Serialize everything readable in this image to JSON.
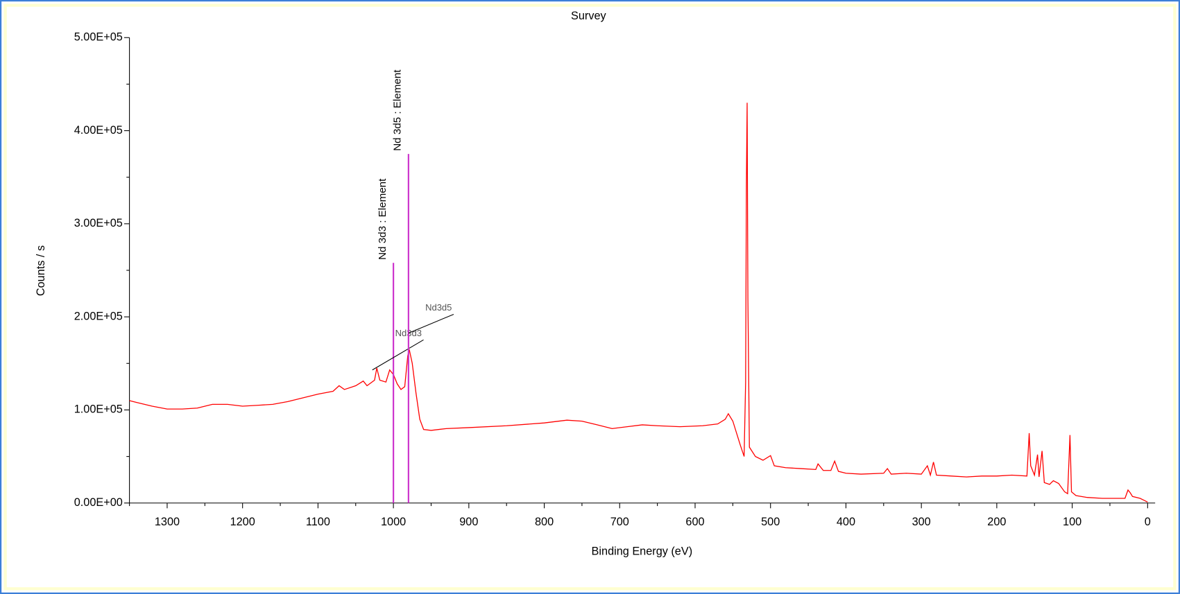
{
  "chart_data": {
    "type": "line",
    "title": "Survey",
    "x_label": "Binding Energy (eV)",
    "y_label": "Counts / s",
    "xlim": [
      1350,
      -10
    ],
    "ylim": [
      0,
      500000
    ],
    "xticks": [
      1300,
      1200,
      1100,
      1000,
      900,
      800,
      700,
      600,
      500,
      400,
      300,
      200,
      100,
      0
    ],
    "yticks": [
      {
        "value": 0,
        "label": "0.00E+00"
      },
      {
        "value": 100000,
        "label": "1.00E+05"
      },
      {
        "value": 200000,
        "label": "2.00E+05"
      },
      {
        "value": 300000,
        "label": "3.00E+05"
      },
      {
        "value": 400000,
        "label": "4.00E+05"
      },
      {
        "value": 500000,
        "label": "5.00E+05"
      }
    ],
    "x": [
      1350,
      1340,
      1320,
      1300,
      1280,
      1260,
      1240,
      1220,
      1200,
      1180,
      1160,
      1140,
      1120,
      1100,
      1080,
      1072,
      1065,
      1050,
      1040,
      1035,
      1025,
      1022,
      1018,
      1010,
      1005,
      1000,
      995,
      990,
      985,
      981,
      979,
      975,
      970,
      965,
      960,
      950,
      930,
      900,
      850,
      800,
      770,
      750,
      730,
      710,
      690,
      670,
      650,
      620,
      590,
      570,
      560,
      556,
      550,
      540,
      535,
      533,
      532,
      531,
      530,
      528,
      520,
      510,
      500,
      495,
      480,
      460,
      440,
      437,
      430,
      420,
      415,
      410,
      400,
      380,
      350,
      345,
      340,
      320,
      300,
      292,
      288,
      284,
      280,
      260,
      240,
      220,
      200,
      180,
      160,
      157,
      155,
      150,
      146,
      144,
      140,
      137,
      130,
      125,
      118,
      110,
      106,
      103,
      101,
      95,
      80,
      60,
      40,
      30,
      26,
      23,
      20,
      10,
      5,
      0
    ],
    "series": [
      {
        "color": "#ff0000",
        "values": [
          110000,
          108000,
          104000,
          101000,
          101000,
          102000,
          106000,
          106000,
          104000,
          105000,
          106000,
          109000,
          113000,
          117000,
          120000,
          126000,
          122000,
          126000,
          131000,
          126000,
          132000,
          145000,
          132000,
          130000,
          143000,
          138000,
          128000,
          122000,
          125000,
          158000,
          165000,
          150000,
          118000,
          90000,
          79000,
          78000,
          80000,
          81000,
          83000,
          86000,
          89000,
          88000,
          84000,
          80000,
          82000,
          84000,
          83000,
          82000,
          83000,
          85000,
          90000,
          96000,
          88000,
          62000,
          50000,
          130000,
          340000,
          430000,
          220000,
          60000,
          50000,
          46000,
          51000,
          40000,
          38000,
          37000,
          36000,
          42000,
          35000,
          35000,
          45000,
          34000,
          32000,
          31000,
          32000,
          37000,
          31000,
          32000,
          31000,
          40000,
          30000,
          44000,
          30000,
          29000,
          28000,
          29000,
          29000,
          30000,
          29000,
          75000,
          40000,
          30000,
          52000,
          28000,
          56000,
          22000,
          20000,
          24000,
          21000,
          12000,
          10000,
          73000,
          12000,
          8000,
          6000,
          5000,
          5000,
          5000,
          14000,
          11000,
          7000,
          5000,
          3000,
          1000
        ]
      }
    ],
    "markers": [
      {
        "label": "Nd 3d3 : Element",
        "annotation": "Nd3d3",
        "x": 1000,
        "height": 258000,
        "color": "#cc33cc"
      },
      {
        "label": "Nd 3d5 : Element",
        "annotation": "Nd3d5",
        "x": 980,
        "height": 375000,
        "color": "#cc33cc"
      }
    ]
  }
}
